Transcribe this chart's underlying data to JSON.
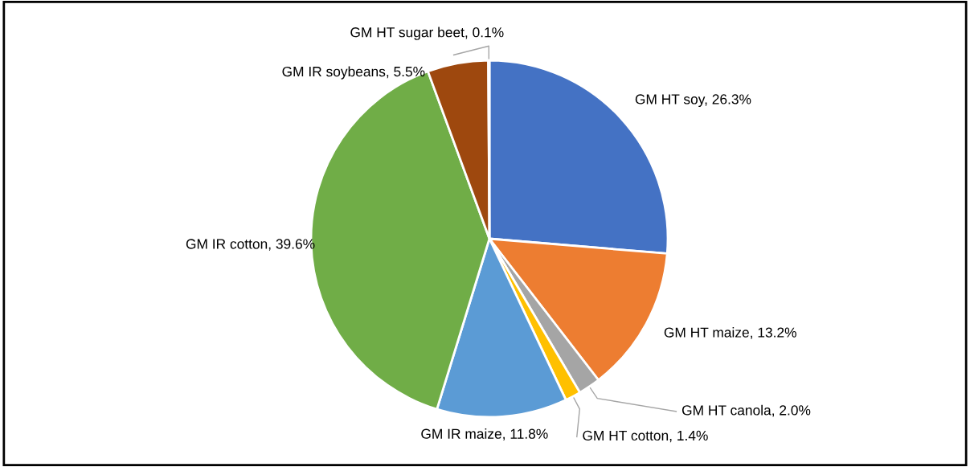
{
  "chart_data": {
    "type": "pie",
    "categories": [
      "GM HT soy",
      "GM HT maize",
      "GM HT canola",
      "GM HT cotton",
      "GM IR maize",
      "GM IR cotton",
      "GM IR soybeans",
      "GM HT sugar beet"
    ],
    "values": [
      26.3,
      13.2,
      2.0,
      1.4,
      11.8,
      39.6,
      5.5,
      0.1
    ],
    "colors": [
      "#4472c4",
      "#ed7d31",
      "#a5a5a5",
      "#ffc000",
      "#5b9bd5",
      "#70ad47",
      "#9e480e",
      "#264478"
    ],
    "value_labels": [
      "26.3%",
      "13.2%",
      "2.0%",
      "1.4%",
      "11.8%",
      "39.6%",
      "5.5%",
      "0.1%"
    ],
    "legend": false
  }
}
